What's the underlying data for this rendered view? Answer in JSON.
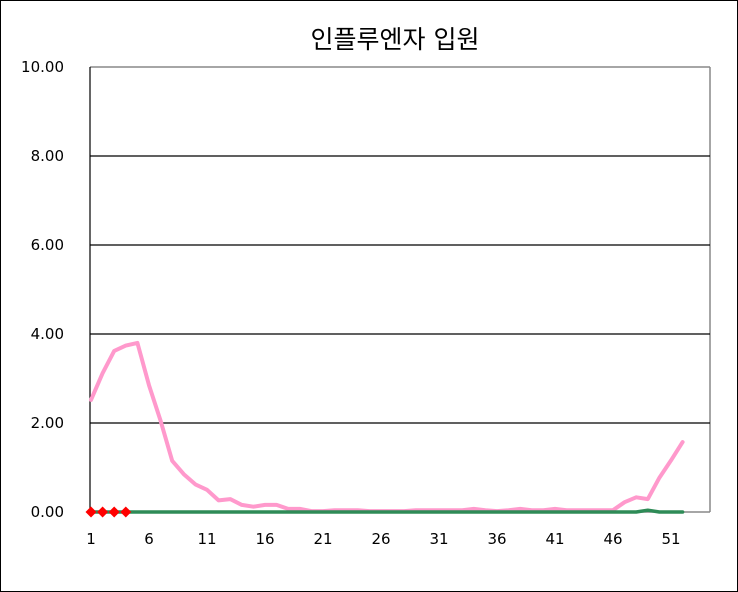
{
  "chart_data": {
    "type": "line",
    "title": "인플루엔자 입원",
    "xlabel": "",
    "ylabel": "",
    "ylim": [
      0,
      10
    ],
    "yticks": [
      "0.00",
      "2.00",
      "4.00",
      "6.00",
      "8.00",
      "10.00"
    ],
    "xlim": [
      1,
      53
    ],
    "xticks": [
      "1",
      "6",
      "11",
      "16",
      "21",
      "26",
      "31",
      "36",
      "41",
      "46",
      "51"
    ],
    "grid": true,
    "legend": "none",
    "series": [
      {
        "color": "#ff99cc",
        "style": "line",
        "x": [
          1,
          2,
          3,
          4,
          5,
          6,
          7,
          8,
          9,
          10,
          11,
          12,
          13,
          14,
          15,
          16,
          17,
          18,
          19,
          20,
          21,
          22,
          23,
          24,
          25,
          26,
          27,
          28,
          29,
          30,
          31,
          32,
          33,
          34,
          35,
          36,
          37,
          38,
          39,
          40,
          41,
          42,
          43,
          44,
          45,
          46,
          47,
          48,
          49,
          50,
          51,
          52
        ],
        "values": [
          2.52,
          3.12,
          3.62,
          3.74,
          3.8,
          2.85,
          2.05,
          1.15,
          0.85,
          0.62,
          0.5,
          0.26,
          0.29,
          0.16,
          0.12,
          0.16,
          0.16,
          0.07,
          0.07,
          0.02,
          0.02,
          0.04,
          0.04,
          0.04,
          0.02,
          0.02,
          0.02,
          0.02,
          0.04,
          0.04,
          0.04,
          0.04,
          0.04,
          0.07,
          0.04,
          0.02,
          0.04,
          0.07,
          0.04,
          0.04,
          0.07,
          0.04,
          0.04,
          0.04,
          0.04,
          0.04,
          0.22,
          0.33,
          0.29,
          0.77,
          1.16,
          1.57
        ]
      },
      {
        "color": "#2e8b57",
        "style": "line",
        "x": [
          1,
          2,
          3,
          4,
          5,
          6,
          7,
          8,
          9,
          10,
          11,
          12,
          13,
          14,
          15,
          16,
          17,
          18,
          19,
          20,
          21,
          22,
          23,
          24,
          25,
          26,
          27,
          28,
          29,
          30,
          31,
          32,
          33,
          34,
          35,
          36,
          37,
          38,
          39,
          40,
          41,
          42,
          43,
          44,
          45,
          46,
          47,
          48,
          49,
          50,
          51,
          52
        ],
        "values": [
          0,
          0,
          0,
          0,
          0,
          0,
          0,
          0,
          0,
          0,
          0,
          0,
          0,
          0,
          0,
          0,
          0,
          0,
          0,
          0,
          0,
          0,
          0,
          0,
          0,
          0,
          0,
          0,
          0,
          0,
          0,
          0,
          0,
          0,
          0,
          0,
          0,
          0,
          0,
          0,
          0,
          0,
          0,
          0,
          0,
          0,
          0,
          0,
          0.04,
          0,
          0,
          0
        ]
      },
      {
        "color": "#ff0000",
        "style": "marker-diamond",
        "x": [
          1,
          2,
          3,
          4
        ],
        "values": [
          0,
          0,
          0,
          0
        ]
      }
    ]
  }
}
